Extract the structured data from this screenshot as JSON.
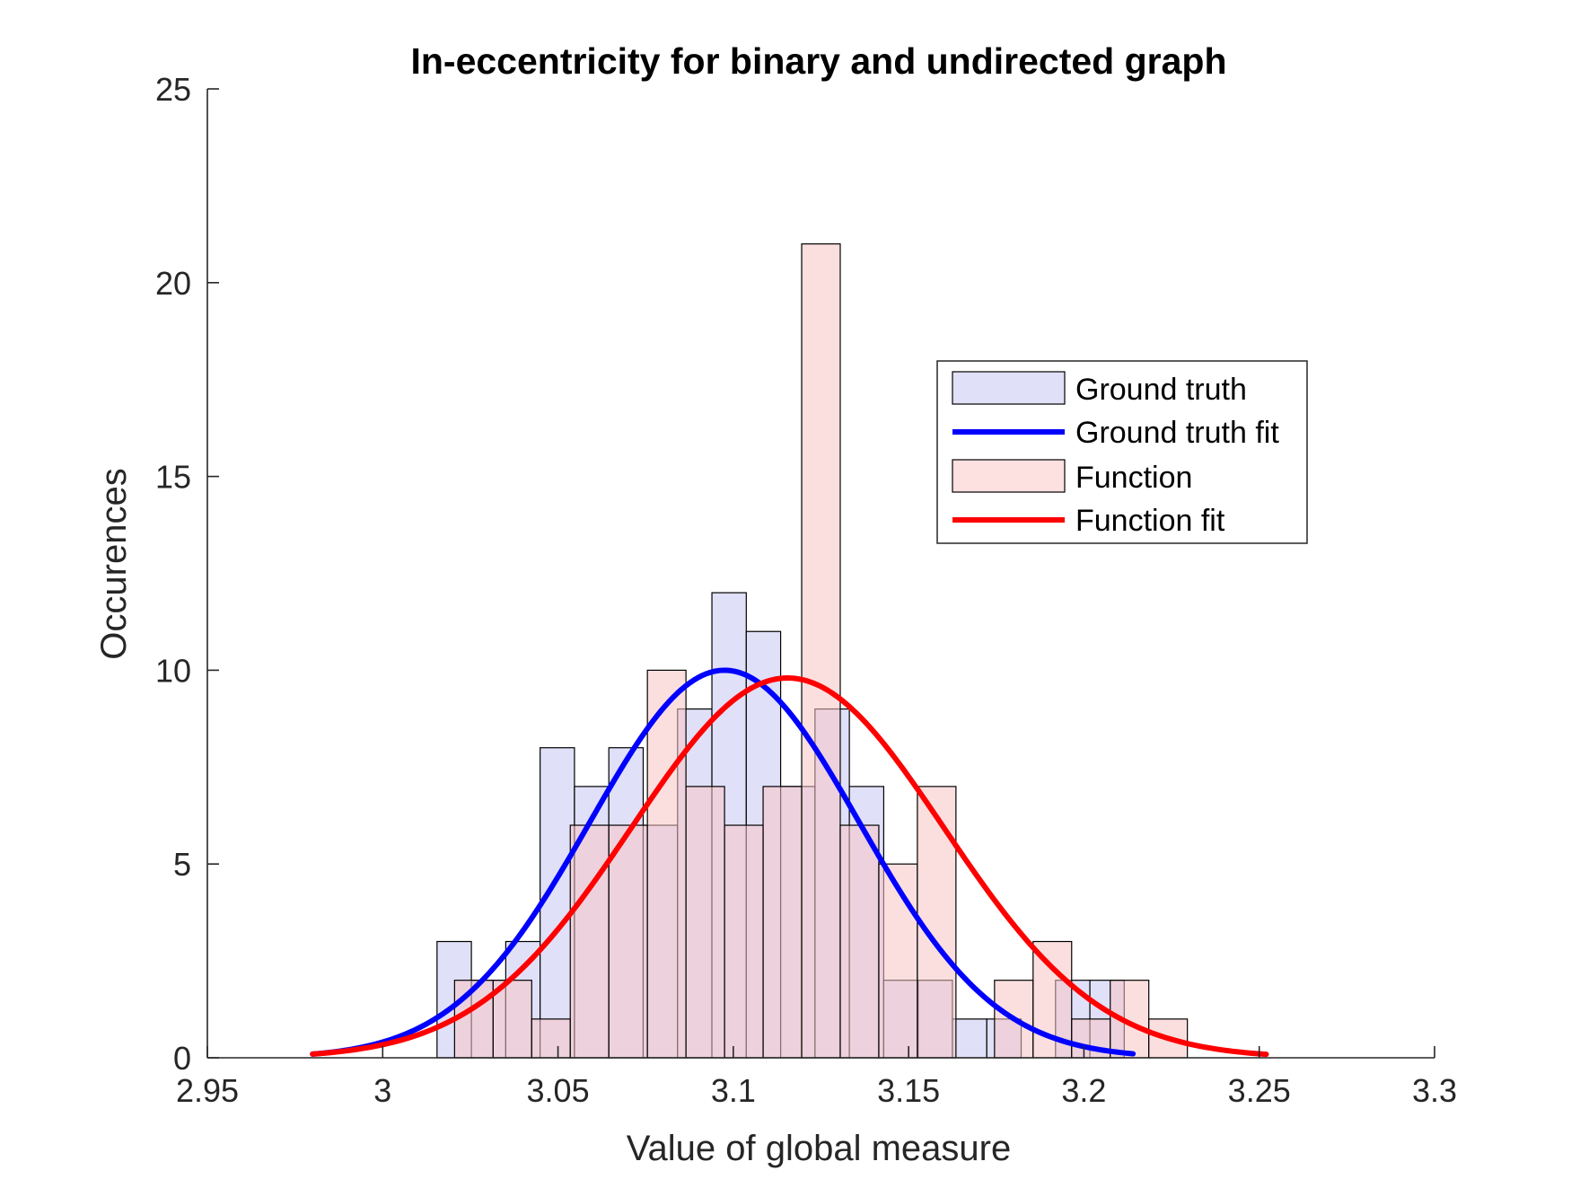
{
  "chart_data": {
    "type": "bar",
    "title": "In-eccentricity for binary and undirected graph",
    "xlabel": "Value of global measure",
    "ylabel": "Occurences",
    "xlim": [
      2.95,
      3.3
    ],
    "ylim": [
      0,
      25
    ],
    "xticks": [
      2.95,
      3.0,
      3.05,
      3.1,
      3.15,
      3.2,
      3.25,
      3.3
    ],
    "xtick_labels": [
      "2.95",
      "3",
      "3.05",
      "3.1",
      "3.15",
      "3.2",
      "3.25",
      "3.3"
    ],
    "yticks": [
      0,
      5,
      10,
      15,
      20,
      25
    ],
    "ytick_labels": [
      "0",
      "5",
      "10",
      "15",
      "20",
      "25"
    ],
    "grid": false,
    "legend_position": "top-right",
    "colors": {
      "ground_truth_face": "#e0e0f8",
      "function_face": "#fde0e0",
      "overlap_face": "#e3c8e0",
      "ground_truth_fit": "#0000ff",
      "function_fit": "#ff0000",
      "bar_edge": "#000000",
      "axis": "#262626"
    },
    "series": [
      {
        "name": "Ground truth",
        "kind": "histogram",
        "bin_edges": [
          3.0155,
          3.0253,
          3.0351,
          3.0449,
          3.0547,
          3.0645,
          3.0743,
          3.0841,
          3.0939,
          3.1037,
          3.1135,
          3.1233,
          3.1331,
          3.1429,
          3.1527,
          3.1625,
          3.1723,
          3.1821,
          3.1919,
          3.2017,
          3.2115
        ],
        "counts": [
          3,
          2,
          3,
          8,
          7,
          8,
          6,
          9,
          12,
          11,
          7,
          9,
          7,
          2,
          2,
          1,
          1,
          0,
          2,
          2
        ]
      },
      {
        "name": "Ground truth fit",
        "kind": "normal_fit",
        "mean": 3.0975,
        "peak": 10,
        "sigma": 0.0385,
        "x_range": [
          2.98,
          3.214
        ]
      },
      {
        "name": "Function",
        "kind": "histogram",
        "bin_edges": [
          3.0205,
          3.0315,
          3.0425,
          3.0535,
          3.0645,
          3.0755,
          3.0865,
          3.0975,
          3.1085,
          3.1195,
          3.1305,
          3.1415,
          3.1525,
          3.1635,
          3.1745,
          3.1855,
          3.1965,
          3.2075,
          3.2185,
          3.2295,
          3.2405
        ],
        "counts": [
          2,
          2,
          1,
          6,
          6,
          10,
          7,
          6,
          7,
          21,
          6,
          5,
          7,
          0,
          2,
          3,
          1,
          2,
          1,
          0
        ]
      },
      {
        "name": "Function fit",
        "kind": "normal_fit",
        "mean": 3.1155,
        "peak": 9.8,
        "sigma": 0.0445,
        "x_range": [
          2.98,
          3.252
        ]
      }
    ]
  }
}
